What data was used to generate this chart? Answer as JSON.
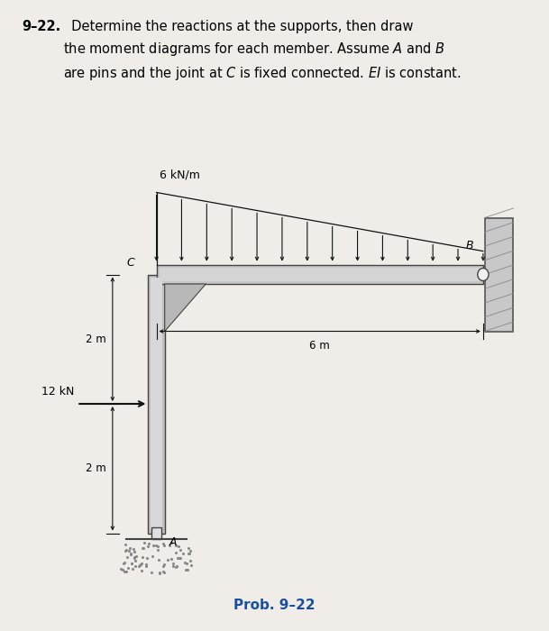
{
  "bg_color": "#f0ede8",
  "title_num": "9–22.",
  "title_rest": "  Determine the reactions at the supports, then draw\nthe moment diagrams for each member. Assume $A$ and $B$\nare pins and the joint at $C$ is fixed connected. $EI$ is constant.",
  "prob_label": "Prob. 9–22",
  "prob_color": "#1a4fa0",
  "label_A": "A",
  "label_B": "B",
  "label_C": "C",
  "dim_2m_up": "2 m",
  "dim_2m_lo": "2 m",
  "dim_6m": "6 m",
  "load_6kNm": "6 kN/m",
  "load_12kN": "12 kN",
  "beam_fc": "#c8c8c8",
  "beam_ec": "#444444",
  "col_fc": "#c0c0c0",
  "col_ec": "#444444",
  "gusset_fc": "#b8b8b8",
  "wall_fc": "#c8c8c8",
  "wall_ec": "#555555",
  "ground_color": "#888888",
  "struct_lw": 1.2,
  "arrow_color": "#111111",
  "dim_color": "#111111",
  "text_color": "#111111"
}
